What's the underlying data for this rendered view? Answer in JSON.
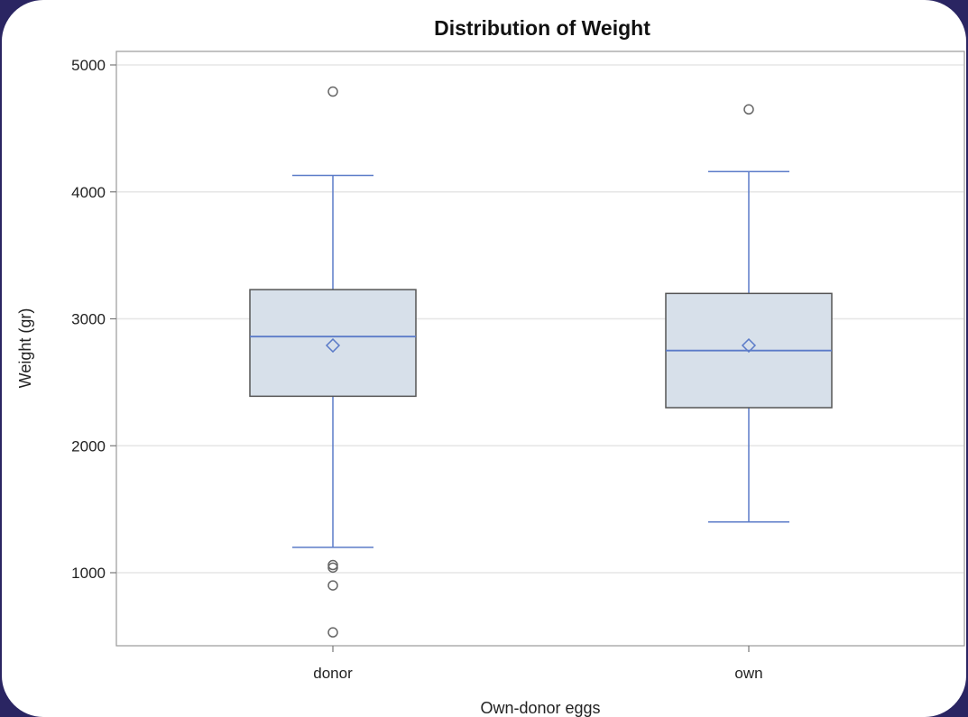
{
  "chart_data": {
    "type": "box",
    "title": "Distribution of Weight",
    "xlabel": "Own-donor eggs",
    "ylabel": "Weight (gr)",
    "categories": [
      "donor",
      "own"
    ],
    "yticks": [
      1000,
      2000,
      3000,
      4000,
      5000
    ],
    "ylim": [
      425,
      5100
    ],
    "grid": true,
    "colors": {
      "box_fill": "#d7e0ea",
      "box_edge": "#555555",
      "whisker": "#5b7bc8",
      "mean": "#5b7bc8",
      "outlier": "#666666",
      "grid": "#e6e6e6"
    },
    "boxes": [
      {
        "category": "donor",
        "whisker_low": 1200,
        "q1": 2390,
        "median": 2860,
        "q3": 3230,
        "whisker_high": 4130,
        "mean": 2790,
        "outliers": [
          4790,
          1060,
          1040,
          900,
          530
        ]
      },
      {
        "category": "own",
        "whisker_low": 1400,
        "q1": 2300,
        "median": 2750,
        "q3": 3200,
        "whisker_high": 4160,
        "mean": 2790,
        "outliers": [
          4650
        ]
      }
    ]
  }
}
